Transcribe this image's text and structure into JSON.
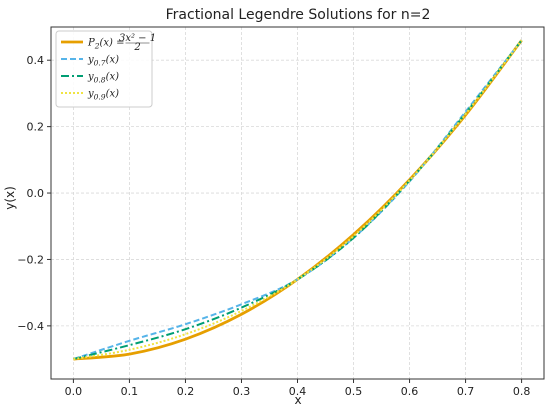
{
  "chart_data": {
    "type": "line",
    "title": "Fractional Legendre Solutions for n=2",
    "xlabel": "x",
    "ylabel": "y(x)",
    "xlim": [
      -0.04,
      0.84
    ],
    "ylim": [
      -0.56,
      0.5
    ],
    "x_ticks": [
      0.0,
      0.1,
      0.2,
      0.3,
      0.4,
      0.5,
      0.6,
      0.7,
      0.8
    ],
    "x_tick_labels": [
      "0.0",
      "0.1",
      "0.2",
      "0.3",
      "0.4",
      "0.5",
      "0.6",
      "0.7",
      "0.8"
    ],
    "y_ticks": [
      -0.4,
      -0.2,
      0.0,
      0.2,
      0.4
    ],
    "y_tick_labels": [
      "−0.4",
      "−0.2",
      "0.0",
      "0.2",
      "0.4"
    ],
    "grid": true,
    "legend_position": "top-left",
    "x": [
      0.0,
      0.1,
      0.2,
      0.3,
      0.4,
      0.5,
      0.6,
      0.7,
      0.8
    ],
    "series": [
      {
        "name": "P2(x) = (3x²−1)/2",
        "legend_label_parts": {
          "func": "P",
          "sub": "2",
          "arg": "(x) = ",
          "num": "3x² − 1",
          "den": "2"
        },
        "color": "#E69F00",
        "style": "solid",
        "values": [
          -0.5,
          -0.485,
          -0.44,
          -0.365,
          -0.26,
          -0.125,
          0.04,
          0.235,
          0.46
        ]
      },
      {
        "name": "y0.7(x)",
        "legend_label_parts": {
          "func": "y",
          "sub": "0.7",
          "arg": "(x)"
        },
        "color": "#56B4E9",
        "style": "dashed",
        "values": [
          -0.5,
          -0.445,
          -0.395,
          -0.335,
          -0.26,
          -0.135,
          0.035,
          0.245,
          0.46
        ]
      },
      {
        "name": "y0.8(x)",
        "legend_label_parts": {
          "func": "y",
          "sub": "0.8",
          "arg": "(x)"
        },
        "color": "#009E73",
        "style": "dashdot",
        "values": [
          -0.5,
          -0.458,
          -0.41,
          -0.345,
          -0.26,
          -0.135,
          0.037,
          0.24,
          0.46
        ]
      },
      {
        "name": "y0.9(x)",
        "legend_label_parts": {
          "func": "y",
          "sub": "0.9",
          "arg": "(x)"
        },
        "color": "#F0E442",
        "style": "dotted",
        "values": [
          -0.5,
          -0.472,
          -0.425,
          -0.355,
          -0.26,
          -0.13,
          0.038,
          0.238,
          0.46
        ]
      }
    ]
  }
}
